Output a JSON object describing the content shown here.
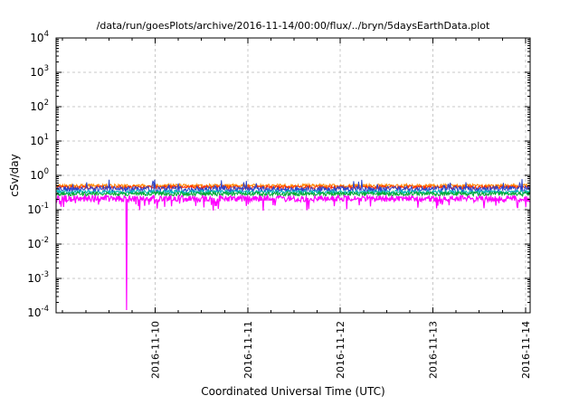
{
  "chart_data": {
    "type": "line",
    "title": "/data/run/goesPlots/archive/2016-11-14/00:00/flux/../bryn/5daysEarthData.plot",
    "xlabel": "Coordinated Universal Time (UTC)",
    "ylabel": "cSv/day",
    "y_scale": "log",
    "ylim": [
      0.0001,
      10000
    ],
    "y_tick_exponents": [
      4,
      3,
      2,
      1,
      0,
      -1,
      -2,
      -3,
      -4
    ],
    "x_range_days": [
      0,
      5.12
    ],
    "x_ticks": [
      {
        "pos": 1.07,
        "label": "2016-11-10"
      },
      {
        "pos": 2.07,
        "label": "2016-11-11"
      },
      {
        "pos": 3.07,
        "label": "2016-11-12"
      },
      {
        "pos": 4.07,
        "label": "2016-11-13"
      },
      {
        "pos": 5.07,
        "label": "2016-11-14"
      }
    ],
    "x_minor_tick_interval_days": 0.25,
    "grid": true,
    "legend": "none",
    "series": [
      {
        "name": "orange",
        "color": "#ff8800",
        "base": 0.5,
        "jitter": 0.05,
        "spike": "none"
      },
      {
        "name": "red",
        "color": "#ff2a00",
        "base": 0.45,
        "jitter": 0.05,
        "spike": "none"
      },
      {
        "name": "blue",
        "color": "#2a44cc",
        "base": 0.4,
        "jitter": 0.08,
        "spike": "up"
      },
      {
        "name": "cyan",
        "color": "#00b8b8",
        "base": 0.33,
        "jitter": 0.05,
        "spike": "none"
      },
      {
        "name": "green",
        "color": "#00a833",
        "base": 0.29,
        "jitter": 0.06,
        "spike": "none"
      },
      {
        "name": "magenta",
        "color": "#ff00ff",
        "base": 0.21,
        "jitter": 0.09,
        "spike": "down",
        "anomaly": {
          "x_day": 0.76,
          "value": 0.00012
        }
      }
    ],
    "band_note": "all series form a noisy horizontal band between about 0.13 and 0.6 cSv/day; the magenta trace drops to 1e-4 once near 2016-11-09 18:00"
  }
}
